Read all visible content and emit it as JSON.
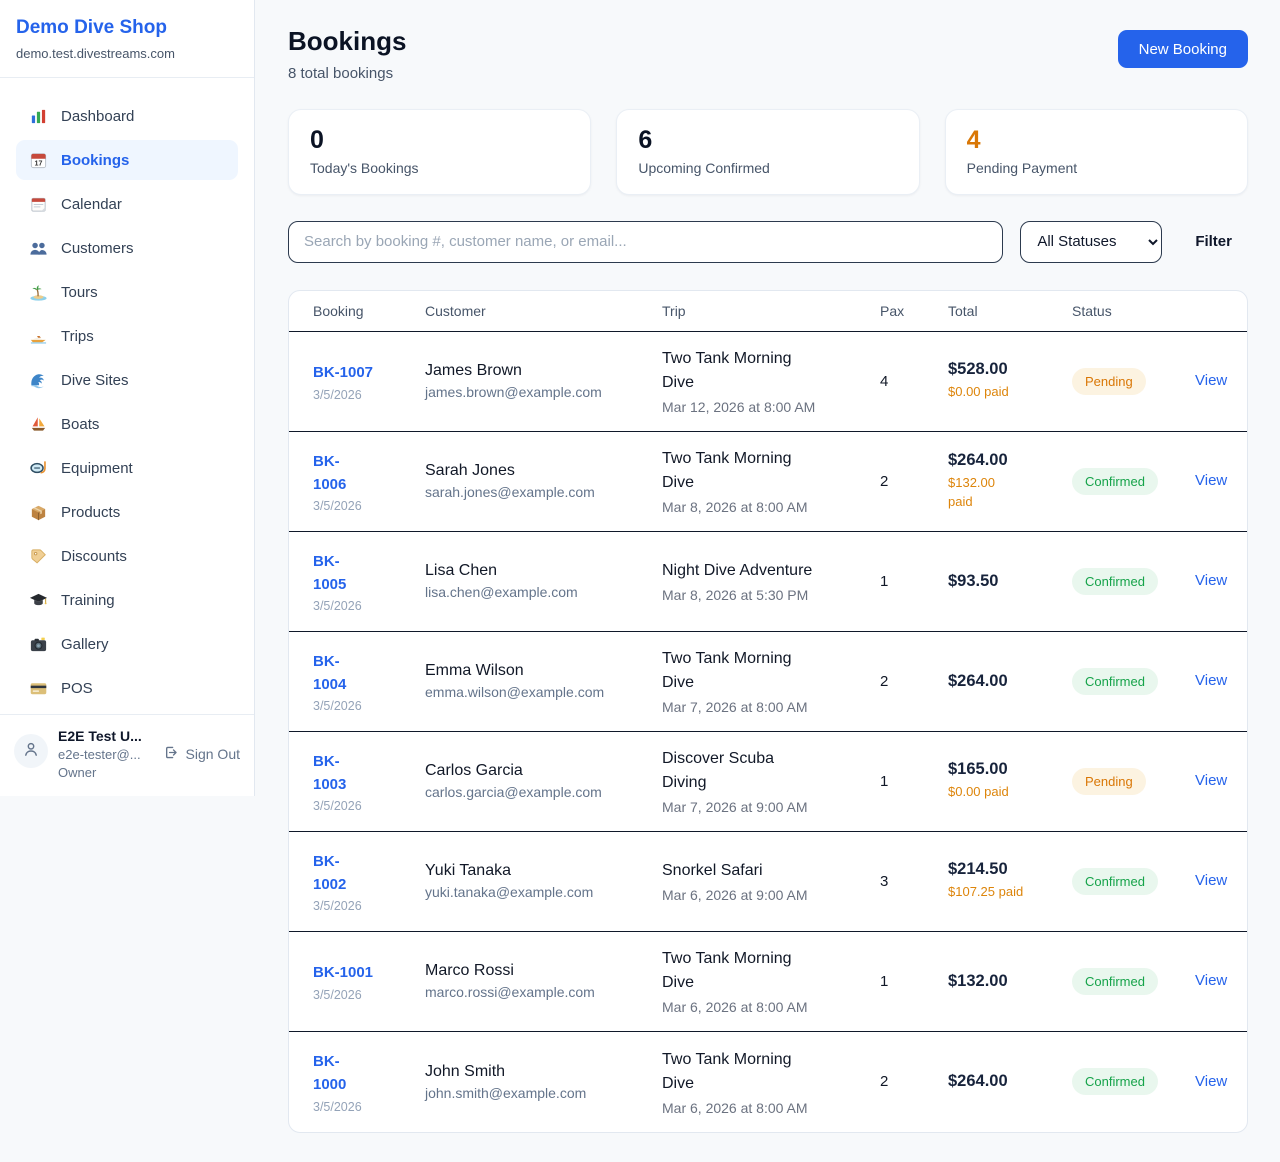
{
  "colors": {
    "accent": "#2563eb",
    "pending_text": "#d97706",
    "pending_badge_bg": "#fcf3e1",
    "confirmed_text": "#16a34a",
    "confirmed_badge_bg": "#e9f7ee",
    "paid_amount": "#dd850b"
  },
  "sidebar": {
    "brand": "Demo Dive Shop",
    "domain": "demo.test.divestreams.com",
    "items": [
      {
        "icon": "bar-chart",
        "label": "Dashboard",
        "active": false
      },
      {
        "icon": "calendar-date",
        "label": "Bookings",
        "active": true
      },
      {
        "icon": "calendar",
        "label": "Calendar",
        "active": false
      },
      {
        "icon": "users",
        "label": "Customers",
        "active": false
      },
      {
        "icon": "island",
        "label": "Tours",
        "active": false
      },
      {
        "icon": "speedboat",
        "label": "Trips",
        "active": false
      },
      {
        "icon": "wave",
        "label": "Dive Sites",
        "active": false
      },
      {
        "icon": "sailboat",
        "label": "Boats",
        "active": false
      },
      {
        "icon": "dive-mask",
        "label": "Equipment",
        "active": false
      },
      {
        "icon": "package",
        "label": "Products",
        "active": false
      },
      {
        "icon": "tag",
        "label": "Discounts",
        "active": false
      },
      {
        "icon": "grad-cap",
        "label": "Training",
        "active": false
      },
      {
        "icon": "camera",
        "label": "Gallery",
        "active": false
      },
      {
        "icon": "credit-card",
        "label": "POS",
        "active": false
      }
    ],
    "user": {
      "name": "E2E Test U...",
      "email": "e2e-tester@...",
      "role": "Owner",
      "sign_out_label": "Sign Out"
    }
  },
  "header": {
    "title": "Bookings",
    "subtitle": "8 total bookings",
    "new_booking_label": "New Booking"
  },
  "stats": [
    {
      "value": "0",
      "label": "Today's Bookings",
      "value_color": "#0b1324"
    },
    {
      "value": "6",
      "label": "Upcoming Confirmed",
      "value_color": "#0b1324"
    },
    {
      "value": "4",
      "label": "Pending Payment",
      "value_color": "#d97706"
    }
  ],
  "filters": {
    "search_placeholder": "Search by booking #, customer name, or email...",
    "status_selected": "All Statuses",
    "filter_label": "Filter"
  },
  "table": {
    "columns": [
      "Booking",
      "Customer",
      "Trip",
      "Pax",
      "Total",
      "Status"
    ],
    "rows": [
      {
        "id": "BK-1007",
        "id_wrap": false,
        "date": "3/5/2026",
        "customer": "James Brown",
        "email": "james.brown@example.com",
        "trip": "Two Tank Morning Dive",
        "trip_datetime": "Mar 12, 2026 at 8:00 AM",
        "pax": "4",
        "total": "$528.00",
        "paid": "$0.00 paid",
        "paid_wrap": false,
        "status": "Pending",
        "action": "View"
      },
      {
        "id": "BK-1006",
        "id_wrap": true,
        "date": "3/5/2026",
        "customer": "Sarah Jones",
        "email": "sarah.jones@example.com",
        "trip": "Two Tank Morning Dive",
        "trip_datetime": "Mar 8, 2026 at 8:00 AM",
        "pax": "2",
        "total": "$264.00",
        "paid": "$132.00 paid",
        "paid_wrap": true,
        "status": "Confirmed",
        "action": "View"
      },
      {
        "id": "BK-1005",
        "id_wrap": true,
        "date": "3/5/2026",
        "customer": "Lisa Chen",
        "email": "lisa.chen@example.com",
        "trip": "Night Dive Adventure",
        "trip_datetime": "Mar 8, 2026 at 5:30 PM",
        "pax": "1",
        "total": "$93.50",
        "paid": null,
        "paid_wrap": false,
        "status": "Confirmed",
        "action": "View"
      },
      {
        "id": "BK-1004",
        "id_wrap": true,
        "date": "3/5/2026",
        "customer": "Emma Wilson",
        "email": "emma.wilson@example.com",
        "trip": "Two Tank Morning Dive",
        "trip_datetime": "Mar 7, 2026 at 8:00 AM",
        "pax": "2",
        "total": "$264.00",
        "paid": null,
        "paid_wrap": false,
        "status": "Confirmed",
        "action": "View"
      },
      {
        "id": "BK-1003",
        "id_wrap": true,
        "date": "3/5/2026",
        "customer": "Carlos Garcia",
        "email": "carlos.garcia@example.com",
        "trip": "Discover Scuba Diving",
        "trip_datetime": "Mar 7, 2026 at 9:00 AM",
        "pax": "1",
        "total": "$165.00",
        "paid": "$0.00 paid",
        "paid_wrap": false,
        "status": "Pending",
        "action": "View"
      },
      {
        "id": "BK-1002",
        "id_wrap": true,
        "date": "3/5/2026",
        "customer": "Yuki Tanaka",
        "email": "yuki.tanaka@example.com",
        "trip": "Snorkel Safari",
        "trip_datetime": "Mar 6, 2026 at 9:00 AM",
        "pax": "3",
        "total": "$214.50",
        "paid": "$107.25 paid",
        "paid_wrap": false,
        "status": "Confirmed",
        "action": "View"
      },
      {
        "id": "BK-1001",
        "id_wrap": false,
        "date": "3/5/2026",
        "customer": "Marco Rossi",
        "email": "marco.rossi@example.com",
        "trip": "Two Tank Morning Dive",
        "trip_datetime": "Mar 6, 2026 at 8:00 AM",
        "pax": "1",
        "total": "$132.00",
        "paid": null,
        "paid_wrap": false,
        "status": "Confirmed",
        "action": "View"
      },
      {
        "id": "BK-1000",
        "id_wrap": true,
        "date": "3/5/2026",
        "customer": "John Smith",
        "email": "john.smith@example.com",
        "trip": "Two Tank Morning Dive",
        "trip_datetime": "Mar 6, 2026 at 8:00 AM",
        "pax": "2",
        "total": "$264.00",
        "paid": null,
        "paid_wrap": false,
        "status": "Confirmed",
        "action": "View"
      }
    ]
  }
}
